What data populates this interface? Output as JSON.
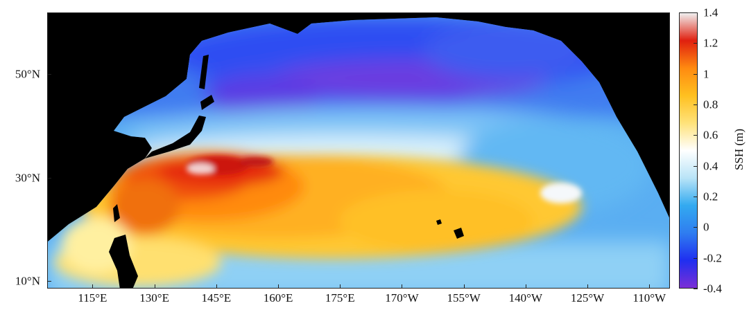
{
  "map": {
    "projection": "equirectangular",
    "ocean_region": "North Pacific",
    "lon_range_deg_east": [
      104,
      255
    ],
    "lat_range_deg_north": [
      8.5,
      62
    ]
  },
  "x_ticks": [
    {
      "label": "115°E",
      "lon": 115
    },
    {
      "label": "130°E",
      "lon": 130
    },
    {
      "label": "145°E",
      "lon": 145
    },
    {
      "label": "160°E",
      "lon": 160
    },
    {
      "label": "175°E",
      "lon": 175
    },
    {
      "label": "170°W",
      "lon": 190
    },
    {
      "label": "155°W",
      "lon": 205
    },
    {
      "label": "140°W",
      "lon": 220
    },
    {
      "label": "125°W",
      "lon": 235
    },
    {
      "label": "110°W",
      "lon": 250
    }
  ],
  "y_ticks": [
    {
      "label": "50°N",
      "lat": 50
    },
    {
      "label": "30°N",
      "lat": 30
    },
    {
      "label": "10°N",
      "lat": 10
    }
  ],
  "colorbar": {
    "title": "SSH (m)",
    "range": [
      -0.4,
      1.4
    ],
    "ticks": [
      {
        "label": "1.4",
        "value": 1.4
      },
      {
        "label": "1.2",
        "value": 1.2
      },
      {
        "label": "1",
        "value": 1.0
      },
      {
        "label": "0.8",
        "value": 0.8
      },
      {
        "label": "0.6",
        "value": 0.6
      },
      {
        "label": "0.4",
        "value": 0.4
      },
      {
        "label": "0.2",
        "value": 0.2
      },
      {
        "label": "0",
        "value": 0
      },
      {
        "label": "-0.2",
        "value": -0.2
      },
      {
        "label": "-0.4",
        "value": -0.4
      }
    ],
    "colors": [
      "#7b2fd6",
      "#1f2ff0",
      "#2f7df0",
      "#33aaf0",
      "#b9e4f7",
      "#ffffff",
      "#ffe27a",
      "#ffc020",
      "#ff8a10",
      "#e0200f",
      "#f0f0f0"
    ]
  },
  "colors": {
    "land": "#000000",
    "subpolar_low": "#6a3de0",
    "subtropical_high": "#e01d10"
  }
}
